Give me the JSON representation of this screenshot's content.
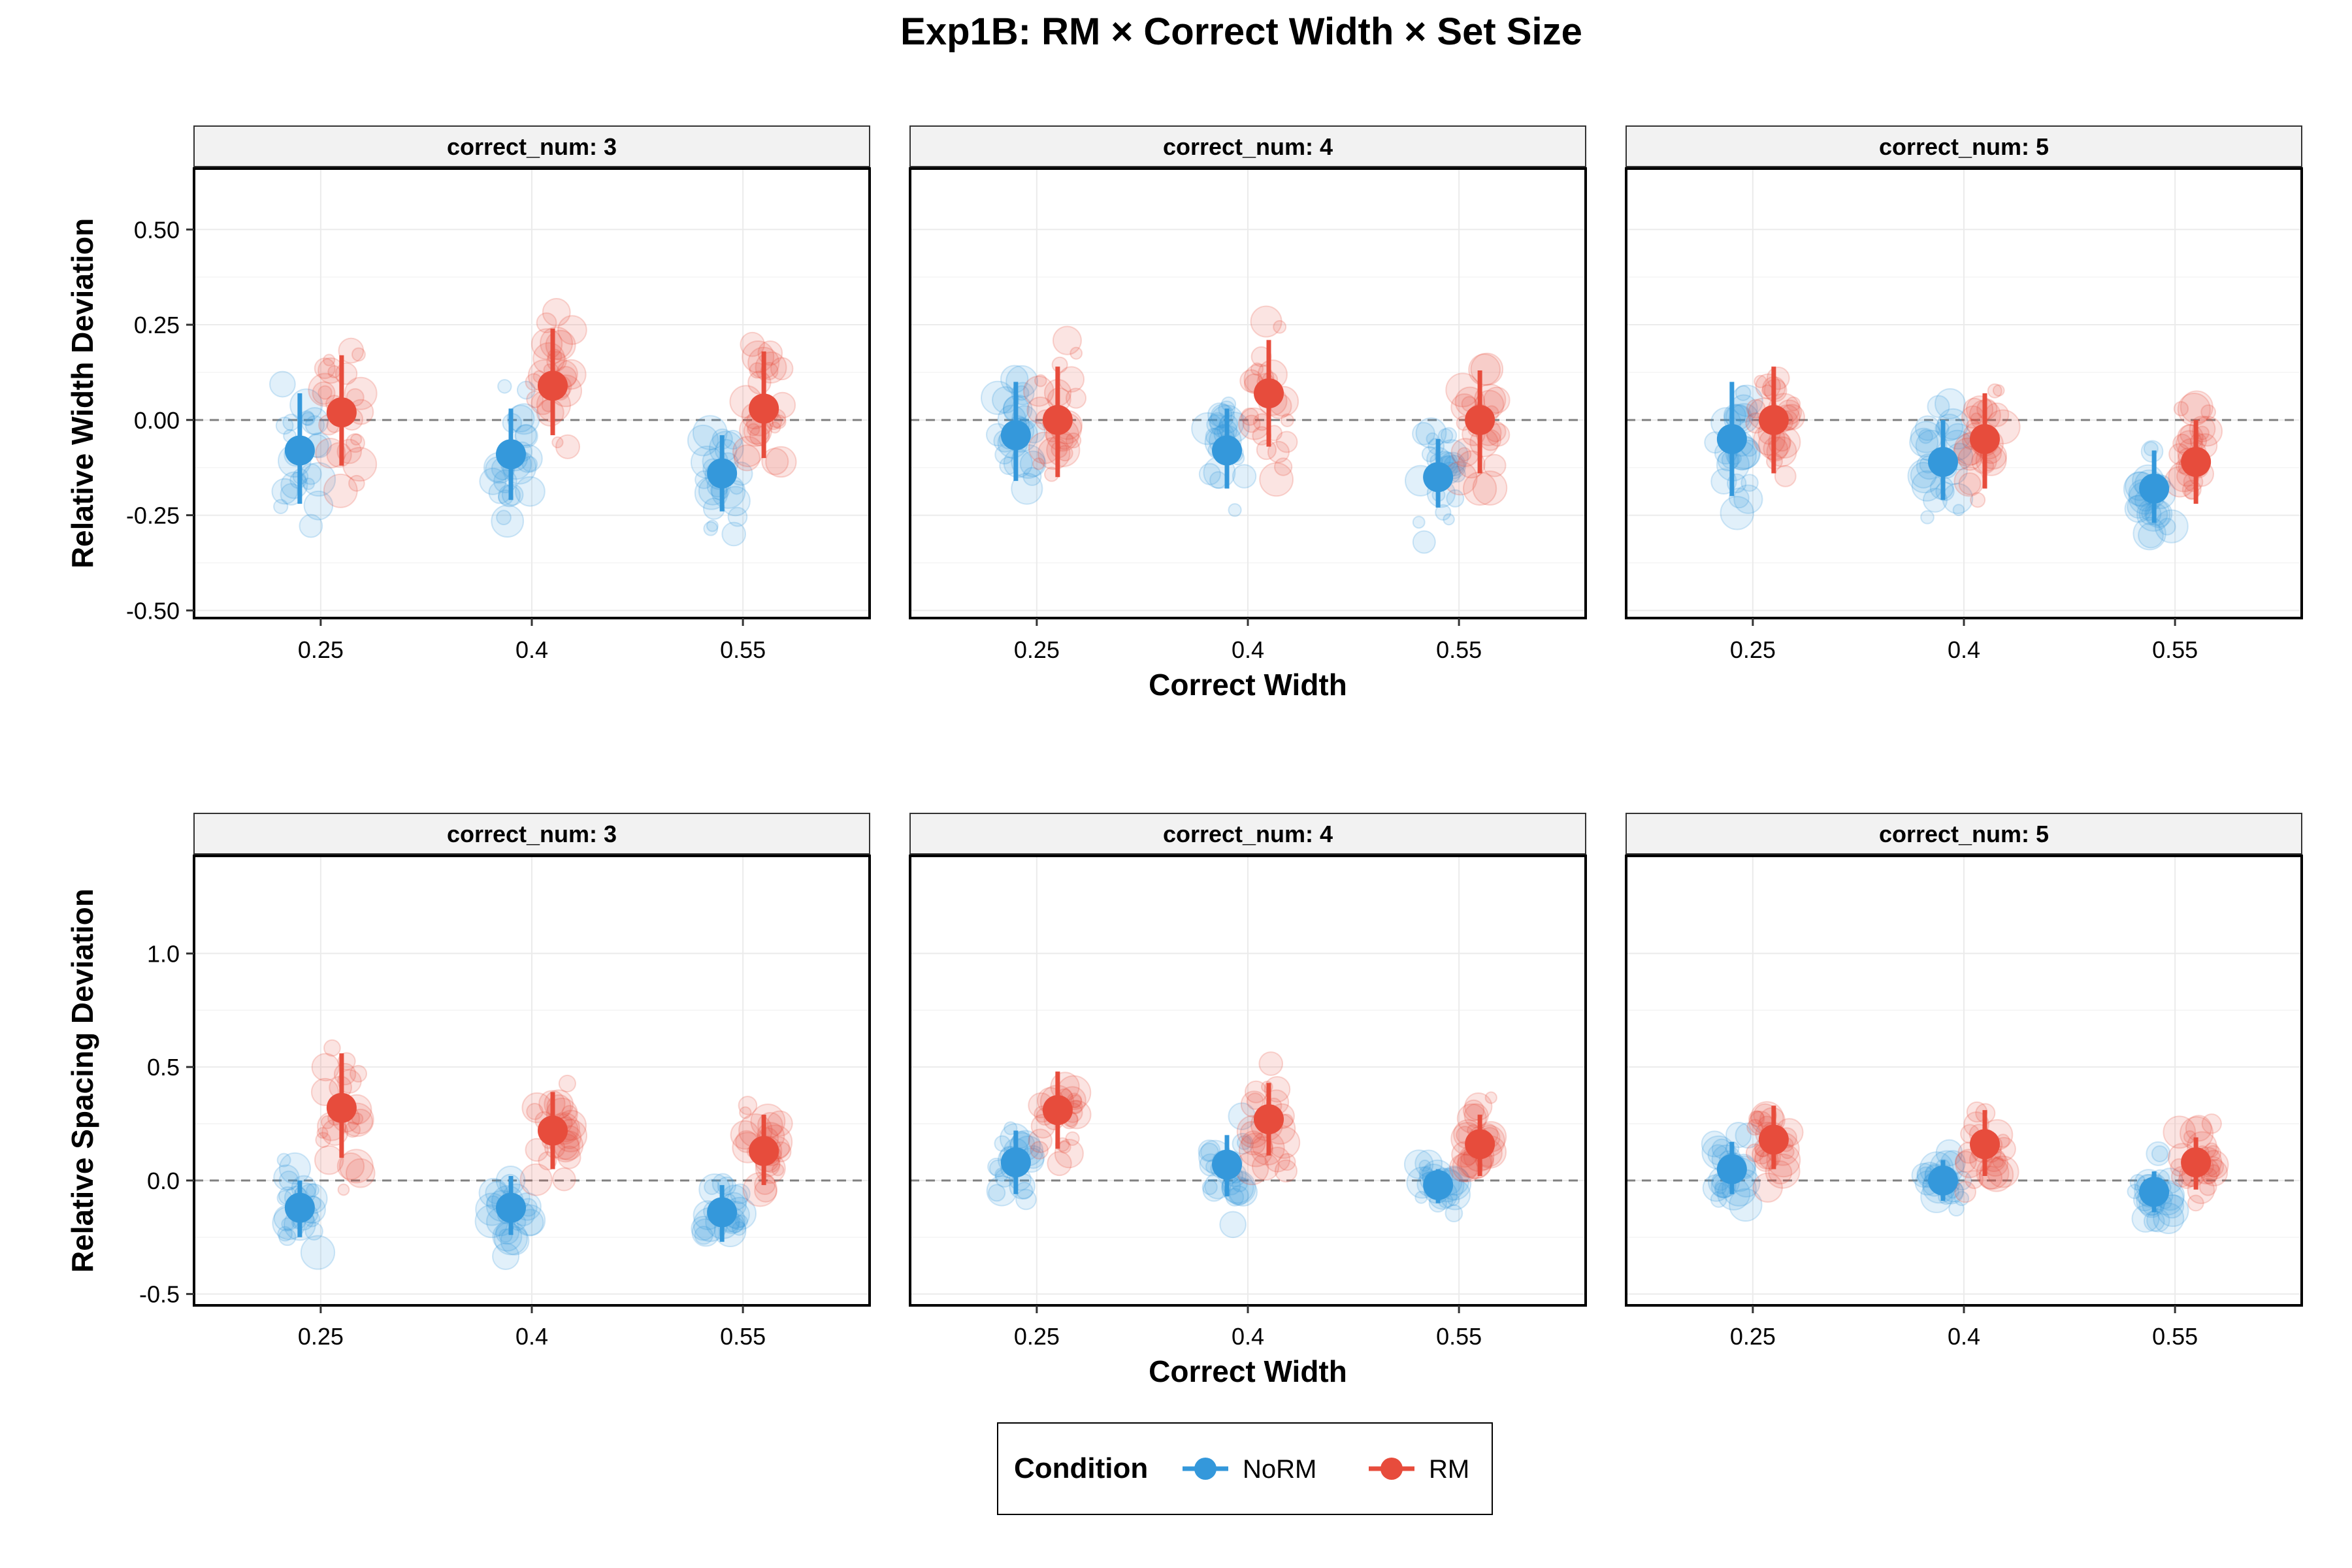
{
  "title": "Exp1B: RM × Correct Width × Set Size",
  "legend": {
    "title": "Condition",
    "items": [
      {
        "label": "NoRM",
        "color": "#3498db"
      },
      {
        "label": "RM",
        "color": "#e74c3c"
      }
    ]
  },
  "colors": {
    "NoRM": "#3498db",
    "RM": "#e74c3c",
    "strip_bg": "#f2f2f2",
    "grid": "#ebebeb"
  },
  "chart_data": [
    {
      "type": "scatter",
      "xlabel": "Correct Width",
      "ylabel": "Relative Width Deviation",
      "categories": [
        "0.25",
        "0.4",
        "0.55"
      ],
      "ylim": [
        -0.52,
        0.66
      ],
      "yticks": [
        -0.5,
        -0.25,
        0.0,
        0.25,
        0.5
      ],
      "ytick_labels": [
        "-0.50",
        "-0.25",
        "0.00",
        "0.25",
        "0.50"
      ],
      "reference_line": 0,
      "grid": true,
      "panels": [
        {
          "label": "correct_num: 3",
          "series": [
            {
              "name": "NoRM",
              "mean": [
                -0.08,
                -0.09,
                -0.14
              ],
              "lower": [
                -0.22,
                -0.21,
                -0.24
              ],
              "upper": [
                0.07,
                0.03,
                -0.04
              ]
            },
            {
              "name": "RM",
              "mean": [
                0.02,
                0.09,
                0.03
              ],
              "lower": [
                -0.12,
                -0.04,
                -0.1
              ],
              "upper": [
                0.17,
                0.24,
                0.18
              ]
            }
          ]
        },
        {
          "label": "correct_num: 4",
          "series": [
            {
              "name": "NoRM",
              "mean": [
                -0.04,
                -0.08,
                -0.15
              ],
              "lower": [
                -0.16,
                -0.18,
                -0.23
              ],
              "upper": [
                0.1,
                0.03,
                -0.05
              ]
            },
            {
              "name": "RM",
              "mean": [
                0.0,
                0.07,
                0.0
              ],
              "lower": [
                -0.15,
                -0.07,
                -0.14
              ],
              "upper": [
                0.14,
                0.21,
                0.13
              ]
            }
          ]
        },
        {
          "label": "correct_num: 5",
          "series": [
            {
              "name": "NoRM",
              "mean": [
                -0.05,
                -0.11,
                -0.18
              ],
              "lower": [
                -0.2,
                -0.21,
                -0.27
              ],
              "upper": [
                0.1,
                0.0,
                -0.08
              ]
            },
            {
              "name": "RM",
              "mean": [
                0.0,
                -0.05,
                -0.11
              ],
              "lower": [
                -0.14,
                -0.18,
                -0.22
              ],
              "upper": [
                0.14,
                0.07,
                0.0
              ]
            }
          ]
        }
      ]
    },
    {
      "type": "scatter",
      "xlabel": "Correct Width",
      "ylabel": "Relative Spacing Deviation",
      "categories": [
        "0.25",
        "0.4",
        "0.55"
      ],
      "ylim": [
        -0.55,
        1.43
      ],
      "yticks": [
        -0.5,
        0.0,
        0.5,
        1.0
      ],
      "ytick_labels": [
        "-0.5",
        "0.0",
        "0.5",
        "1.0"
      ],
      "reference_line": 0,
      "grid": true,
      "panels": [
        {
          "label": "correct_num: 3",
          "series": [
            {
              "name": "NoRM",
              "mean": [
                -0.12,
                -0.12,
                -0.14
              ],
              "lower": [
                -0.25,
                -0.24,
                -0.27
              ],
              "upper": [
                0.0,
                0.02,
                -0.02
              ]
            },
            {
              "name": "RM",
              "mean": [
                0.32,
                0.22,
                0.13
              ],
              "lower": [
                0.1,
                0.05,
                -0.02
              ],
              "upper": [
                0.56,
                0.39,
                0.29
              ]
            }
          ]
        },
        {
          "label": "correct_num: 4",
          "series": [
            {
              "name": "NoRM",
              "mean": [
                0.08,
                0.07,
                -0.02
              ],
              "lower": [
                -0.06,
                -0.07,
                -0.1
              ],
              "upper": [
                0.22,
                0.2,
                0.05
              ]
            },
            {
              "name": "RM",
              "mean": [
                0.31,
                0.27,
                0.16
              ],
              "lower": [
                0.14,
                0.11,
                0.02
              ],
              "upper": [
                0.48,
                0.43,
                0.29
              ]
            }
          ]
        },
        {
          "label": "correct_num: 5",
          "series": [
            {
              "name": "NoRM",
              "mean": [
                0.05,
                0.0,
                -0.05
              ],
              "lower": [
                -0.06,
                -0.09,
                -0.14
              ],
              "upper": [
                0.17,
                0.09,
                0.04
              ]
            },
            {
              "name": "RM",
              "mean": [
                0.18,
                0.16,
                0.08
              ],
              "lower": [
                0.05,
                0.02,
                -0.04
              ],
              "upper": [
                0.33,
                0.31,
                0.19
              ]
            }
          ]
        }
      ]
    }
  ]
}
